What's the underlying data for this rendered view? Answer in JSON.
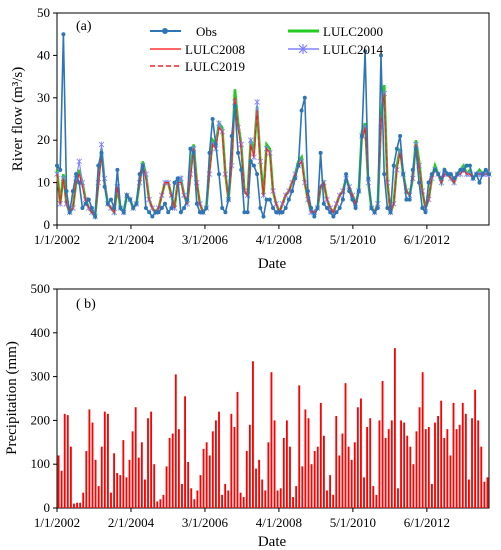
{
  "chart_data": [
    {
      "panel_label": "(a)",
      "type": "line",
      "xlabel": "Date",
      "ylabel": "River flow (m³/s)",
      "ylim": [
        0,
        50
      ],
      "yticks": [
        0,
        10,
        20,
        30,
        40,
        50
      ],
      "xticks": [
        "1/1/2002",
        "2/1/2004",
        "3/1/2006",
        "4/1/2008",
        "5/1/2010",
        "6/1/2012"
      ],
      "xrange": [
        "2002-01",
        "2014-03"
      ],
      "legend_position": "top-center",
      "series": [
        {
          "name": "Obs",
          "color": "#2e75b6",
          "marker": "circle",
          "values": [
            14,
            13,
            45,
            8,
            3,
            8,
            12,
            10,
            4,
            5,
            6,
            4,
            2,
            14,
            17,
            9,
            5,
            6,
            4,
            13,
            4,
            3,
            7,
            6,
            4,
            5,
            12,
            14,
            4,
            3,
            2,
            3,
            3,
            4,
            5,
            3,
            4,
            10,
            11,
            3,
            4,
            6,
            18,
            17,
            5,
            3,
            3,
            4,
            17,
            25,
            19,
            12,
            4,
            3,
            6,
            21,
            28,
            17,
            13,
            3,
            3,
            15,
            14,
            12,
            4,
            2,
            6,
            6,
            4,
            3,
            3,
            3,
            4,
            6,
            8,
            11,
            14,
            27,
            30,
            8,
            4,
            2,
            4,
            17,
            5,
            4,
            3,
            2,
            3,
            4,
            6,
            12,
            8,
            6,
            4,
            8,
            21,
            41,
            11,
            4,
            3,
            4,
            40,
            12,
            4,
            3,
            14,
            18,
            21,
            12,
            6,
            6,
            13,
            18,
            10,
            4,
            3,
            10,
            12,
            13,
            12,
            11,
            13,
            12,
            12,
            11,
            12,
            13,
            13,
            14,
            14,
            11,
            12,
            10,
            12,
            13,
            12
          ]
        },
        {
          "name": "LULC2000",
          "color": "#22cc22",
          "marker": "none",
          "values": [
            13,
            5,
            12,
            5,
            3,
            4,
            10,
            13,
            10,
            6,
            4,
            3,
            2,
            10,
            18,
            10,
            5,
            4,
            3,
            9,
            4,
            3,
            7,
            6,
            4,
            5,
            10,
            15,
            12,
            6,
            4,
            3,
            4,
            7,
            10,
            10,
            7,
            4,
            10,
            11,
            7,
            5,
            12,
            19,
            10,
            5,
            3,
            4,
            13,
            20,
            19,
            24,
            23,
            12,
            6,
            15,
            32,
            24,
            19,
            8,
            7,
            20,
            17,
            28,
            15,
            7,
            19,
            18,
            8,
            5,
            3,
            5,
            7,
            8,
            10,
            12,
            15,
            16,
            10,
            6,
            3,
            3,
            4,
            9,
            10,
            6,
            4,
            3,
            5,
            7,
            8,
            11,
            9,
            7,
            5,
            8,
            22,
            24,
            10,
            4,
            3,
            5,
            25,
            33,
            10,
            3,
            5,
            14,
            18,
            12,
            8,
            7,
            11,
            20,
            15,
            8,
            4,
            6,
            11,
            14,
            12,
            10,
            13,
            12,
            11,
            10,
            12,
            13,
            14,
            12,
            13,
            11,
            12,
            13,
            12,
            13,
            12
          ]
        },
        {
          "name": "LULC2008",
          "color": "#ff3333",
          "marker": "none",
          "dash": "solid",
          "values": [
            12,
            5,
            11,
            5,
            3,
            4,
            10,
            12,
            9,
            6,
            4,
            3,
            2,
            9,
            17,
            10,
            5,
            4,
            3,
            9,
            4,
            3,
            7,
            6,
            4,
            5,
            10,
            14,
            11,
            6,
            4,
            3,
            4,
            7,
            10,
            10,
            7,
            4,
            10,
            10,
            7,
            5,
            11,
            18,
            10,
            5,
            3,
            4,
            12,
            19,
            18,
            23,
            22,
            12,
            6,
            14,
            30,
            23,
            18,
            8,
            7,
            19,
            16,
            27,
            15,
            7,
            18,
            17,
            8,
            5,
            3,
            5,
            7,
            8,
            10,
            12,
            14,
            15,
            10,
            6,
            3,
            3,
            4,
            9,
            10,
            6,
            4,
            3,
            5,
            7,
            8,
            11,
            9,
            7,
            5,
            8,
            20,
            23,
            10,
            4,
            3,
            5,
            24,
            31,
            10,
            3,
            5,
            13,
            17,
            12,
            8,
            7,
            11,
            19,
            14,
            8,
            4,
            6,
            11,
            13,
            12,
            10,
            12,
            12,
            11,
            10,
            12,
            12,
            13,
            12,
            12,
            11,
            12,
            12,
            12,
            12,
            12
          ]
        },
        {
          "name": "LULC2014",
          "color": "#8080ff",
          "marker": "star",
          "values": [
            12,
            5,
            11,
            5,
            3,
            4,
            11,
            15,
            10,
            6,
            4,
            3,
            2,
            10,
            19,
            11,
            5,
            4,
            3,
            9,
            4,
            3,
            7,
            6,
            4,
            5,
            10,
            14,
            12,
            6,
            4,
            3,
            4,
            7,
            10,
            10,
            7,
            4,
            10,
            11,
            7,
            5,
            12,
            18,
            10,
            5,
            3,
            4,
            12,
            19,
            18,
            24,
            22,
            12,
            6,
            14,
            29,
            23,
            19,
            8,
            7,
            20,
            16,
            29,
            15,
            7,
            18,
            17,
            8,
            5,
            3,
            5,
            7,
            8,
            10,
            12,
            14,
            15,
            10,
            6,
            3,
            3,
            4,
            9,
            10,
            6,
            4,
            3,
            5,
            7,
            8,
            11,
            9,
            7,
            5,
            8,
            21,
            23,
            10,
            4,
            3,
            5,
            23,
            31,
            10,
            3,
            5,
            13,
            17,
            12,
            8,
            7,
            11,
            19,
            14,
            8,
            4,
            6,
            11,
            13,
            12,
            10,
            12,
            12,
            11,
            10,
            12,
            12,
            13,
            12,
            12,
            11,
            12,
            12,
            12,
            12,
            12
          ]
        },
        {
          "name": "LULC2019",
          "color": "#ee2222",
          "marker": "none",
          "dash": "dashed",
          "values": [
            12,
            5,
            11,
            5,
            3,
            4,
            10,
            12,
            9,
            6,
            4,
            3,
            2,
            9,
            17,
            10,
            5,
            4,
            3,
            9,
            4,
            3,
            7,
            6,
            4,
            5,
            10,
            14,
            11,
            6,
            4,
            3,
            4,
            7,
            10,
            10,
            7,
            4,
            10,
            10,
            7,
            5,
            11,
            18,
            10,
            5,
            3,
            4,
            12,
            19,
            18,
            23,
            22,
            12,
            6,
            14,
            30,
            23,
            18,
            8,
            7,
            19,
            16,
            27,
            15,
            7,
            18,
            17,
            8,
            5,
            3,
            5,
            7,
            8,
            10,
            12,
            14,
            15,
            10,
            6,
            3,
            3,
            4,
            9,
            10,
            6,
            4,
            3,
            5,
            7,
            8,
            11,
            9,
            7,
            5,
            8,
            20,
            23,
            10,
            4,
            3,
            5,
            24,
            31,
            10,
            3,
            5,
            13,
            17,
            12,
            8,
            7,
            11,
            19,
            14,
            8,
            4,
            6,
            11,
            13,
            12,
            10,
            12,
            12,
            11,
            10,
            12,
            12,
            13,
            12,
            12,
            11,
            12,
            12,
            12,
            12,
            12
          ]
        }
      ]
    },
    {
      "panel_label": "( b)",
      "type": "bar",
      "xlabel": "Date",
      "ylabel": "Precipitation (mm)",
      "ylim": [
        0,
        500
      ],
      "yticks": [
        0,
        100,
        200,
        300,
        400,
        500
      ],
      "xticks": [
        "1/1/2002",
        "2/1/2004",
        "3/1/2006",
        "4/1/2008",
        "5/1/2010",
        "6/1/2012"
      ],
      "xrange": [
        "2002-01",
        "2014-03"
      ],
      "bar_color": "#ff0000",
      "values": [
        120,
        85,
        215,
        212,
        140,
        10,
        12,
        12,
        35,
        130,
        225,
        195,
        110,
        50,
        140,
        220,
        215,
        35,
        125,
        80,
        75,
        155,
        70,
        110,
        175,
        230,
        115,
        150,
        65,
        205,
        220,
        100,
        15,
        20,
        30,
        95,
        160,
        170,
        305,
        180,
        55,
        255,
        105,
        45,
        20,
        40,
        75,
        135,
        150,
        120,
        175,
        200,
        220,
        30,
        55,
        40,
        215,
        185,
        265,
        35,
        25,
        130,
        190,
        335,
        90,
        110,
        65,
        40,
        150,
        310,
        200,
        40,
        45,
        160,
        200,
        140,
        25,
        50,
        280,
        95,
        225,
        205,
        100,
        130,
        140,
        240,
        165,
        40,
        75,
        30,
        210,
        120,
        170,
        285,
        140,
        110,
        150,
        230,
        250,
        70,
        185,
        205,
        50,
        30,
        200,
        290,
        160,
        180,
        200,
        365,
        45,
        200,
        195,
        165,
        140,
        100,
        175,
        230,
        310,
        180,
        185,
        55,
        195,
        210,
        245,
        160,
        180,
        120,
        240,
        180,
        190,
        240,
        215,
        65,
        205,
        270,
        200,
        140,
        60,
        70
      ]
    }
  ]
}
